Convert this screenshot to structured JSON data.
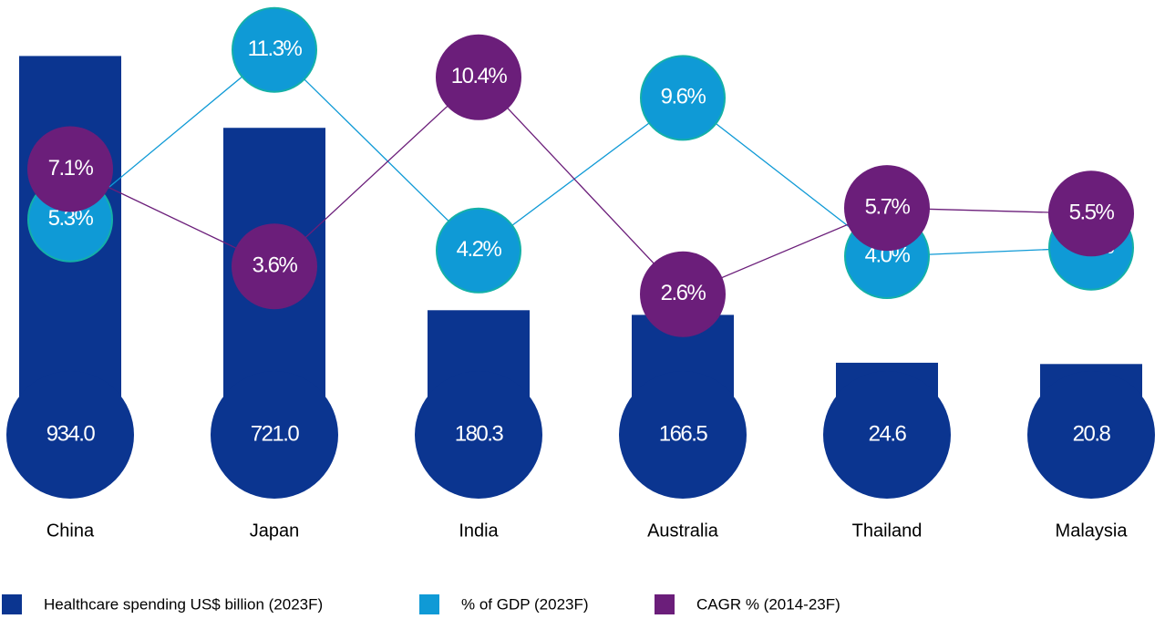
{
  "chart_data": {
    "type": "bar",
    "categories": [
      "China",
      "Japan",
      "India",
      "Australia",
      "Thailand",
      "Malaysia"
    ],
    "series": [
      {
        "name": "Healthcare spending US$ billion (2023F)",
        "color": "#0b3590",
        "values": [
          934.0,
          721.0,
          180.3,
          166.5,
          24.6,
          20.8
        ],
        "value_labels": [
          "934.0",
          "721.0",
          "180.3",
          "166.5",
          "24.6",
          "20.8"
        ]
      },
      {
        "name": "% of GDP (2023F)",
        "color": "#0f9ad6",
        "type": "line",
        "values": [
          5.3,
          11.3,
          4.2,
          9.6,
          4.0,
          4.3
        ],
        "value_labels": [
          "5.3%",
          "11.3%",
          "4.2%",
          "9.6%",
          "4.0%",
          "4.3%"
        ]
      },
      {
        "name": "CAGR % (2014-23F)",
        "color": "#6b1e7a",
        "type": "line",
        "values": [
          7.1,
          3.6,
          10.4,
          2.6,
          5.7,
          5.5
        ],
        "value_labels": [
          "7.1%",
          "3.6%",
          "10.4%",
          "2.6%",
          "5.7%",
          "5.5%"
        ]
      }
    ]
  }
}
